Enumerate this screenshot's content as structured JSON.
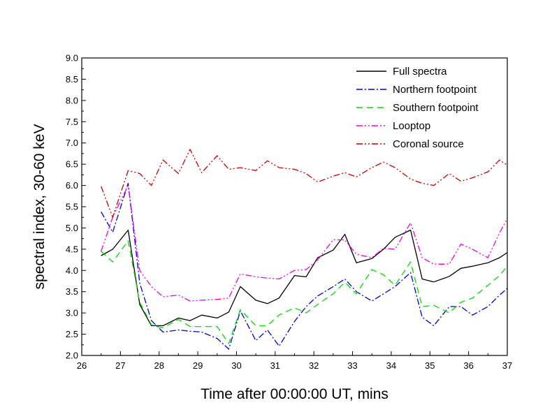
{
  "chart_data": {
    "type": "line",
    "xlabel": "Time after 00:00:00 UT, mins",
    "ylabel": "spectral index, 30-60 keV",
    "xlim": [
      26,
      37
    ],
    "ylim": [
      2.0,
      9.0
    ],
    "xticks": [
      "26",
      "27",
      "28",
      "29",
      "30",
      "31",
      "32",
      "33",
      "34",
      "35",
      "36",
      "37"
    ],
    "yticks": [
      "2.0",
      "2.5",
      "3.0",
      "3.5",
      "4.0",
      "4.5",
      "5.0",
      "5.5",
      "6.0",
      "6.5",
      "7.0",
      "7.5",
      "8.0",
      "8.5",
      "9.0"
    ],
    "grid": false,
    "legend_position": "top-right",
    "x": [
      26.5,
      26.8,
      27.2,
      27.5,
      27.8,
      28.1,
      28.5,
      28.8,
      29.1,
      29.5,
      29.8,
      30.1,
      30.5,
      30.8,
      31.1,
      31.5,
      31.8,
      32.1,
      32.5,
      32.8,
      33.1,
      33.5,
      33.8,
      34.1,
      34.5,
      34.8,
      35.1,
      35.5,
      35.8,
      36.1,
      36.5,
      36.8,
      37.0
    ],
    "series": [
      {
        "name": "Full spectra",
        "color": "#000000",
        "dash": "",
        "values": [
          4.35,
          4.5,
          4.95,
          3.2,
          2.7,
          2.7,
          2.88,
          2.82,
          2.95,
          2.88,
          3.02,
          3.62,
          3.3,
          3.22,
          3.35,
          3.88,
          3.85,
          4.3,
          4.48,
          4.85,
          4.18,
          4.28,
          4.5,
          4.78,
          4.95,
          3.8,
          3.73,
          3.86,
          4.05,
          4.1,
          4.18,
          4.3,
          4.42
        ]
      },
      {
        "name": "Northern footpoint",
        "color": "#0000cc",
        "dash": "9 3 2 3",
        "values": [
          5.38,
          4.9,
          6.05,
          3.7,
          2.82,
          2.55,
          2.6,
          2.57,
          2.55,
          2.4,
          2.15,
          3.05,
          2.35,
          2.6,
          2.22,
          2.8,
          3.15,
          3.4,
          3.62,
          3.8,
          3.5,
          3.28,
          3.45,
          3.62,
          3.95,
          2.9,
          2.7,
          3.15,
          3.15,
          2.95,
          3.15,
          3.42,
          3.58
        ]
      },
      {
        "name": "Southern footpoint",
        "color": "#00dd00",
        "dash": "9 6",
        "values": [
          4.45,
          4.2,
          4.7,
          3.25,
          2.72,
          2.65,
          2.85,
          2.68,
          2.68,
          2.68,
          2.28,
          3.08,
          2.7,
          2.7,
          2.95,
          3.12,
          3.0,
          3.2,
          3.45,
          3.72,
          3.45,
          4.02,
          3.9,
          3.65,
          4.2,
          3.15,
          3.18,
          3.0,
          3.25,
          3.35,
          3.65,
          3.88,
          4.1
        ]
      },
      {
        "name": "Looptop",
        "color": "#ee00ee",
        "dash": "9 3 2 3 2 3",
        "values": [
          4.45,
          5.25,
          6.0,
          4.0,
          3.62,
          3.38,
          3.42,
          3.28,
          3.3,
          3.32,
          3.35,
          3.92,
          3.85,
          3.82,
          3.8,
          4.0,
          4.02,
          4.25,
          4.72,
          4.72,
          4.38,
          4.3,
          4.52,
          4.5,
          5.12,
          4.3,
          4.15,
          4.15,
          4.62,
          4.5,
          4.3,
          4.88,
          5.22
        ]
      },
      {
        "name": "Coronal source",
        "color": "#cc0000",
        "dash": "9 3 2 3 2 3",
        "values": [
          5.98,
          5.25,
          6.35,
          6.28,
          6.0,
          6.6,
          6.28,
          6.85,
          6.3,
          6.7,
          6.38,
          6.42,
          6.35,
          6.58,
          6.42,
          6.38,
          6.28,
          6.08,
          6.22,
          6.3,
          6.2,
          6.42,
          6.55,
          6.42,
          6.15,
          6.05,
          6.0,
          6.28,
          6.1,
          6.18,
          6.32,
          6.6,
          6.48
        ]
      }
    ]
  }
}
